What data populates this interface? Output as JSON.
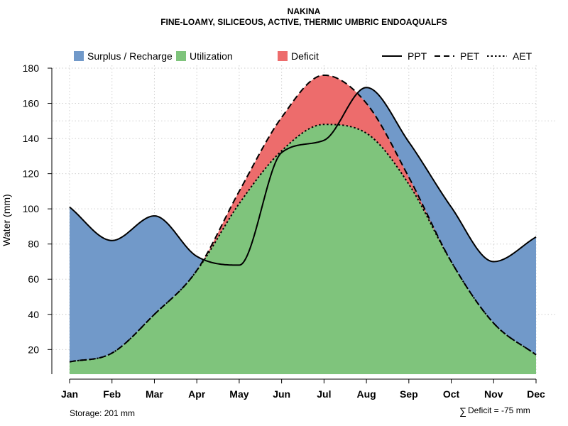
{
  "chart_data": {
    "type": "area",
    "title": "NAKINA",
    "subtitle": "FINE-LOAMY, SILICEOUS, ACTIVE, THERMIC UMBRIC ENDOAQUALFS",
    "xlabel": "",
    "ylabel": "Water (mm)",
    "ylim": [
      6,
      180
    ],
    "yticks": [
      20,
      40,
      60,
      80,
      100,
      120,
      140,
      160,
      180
    ],
    "categories": [
      "Jan",
      "Feb",
      "Mar",
      "Apr",
      "May",
      "Jun",
      "Jul",
      "Aug",
      "Sep",
      "Oct",
      "Nov",
      "Dec"
    ],
    "grid": true,
    "reference_lines_y": [
      40,
      150
    ],
    "series": [
      {
        "name": "PPT",
        "line": "solid",
        "values": [
          101,
          82,
          96,
          73,
          68,
          132,
          139,
          169,
          138,
          101,
          70,
          84
        ]
      },
      {
        "name": "PET",
        "line": "dashed",
        "values": [
          13,
          18,
          40,
          65,
          110,
          152,
          176,
          160,
          118,
          70,
          35,
          17
        ]
      },
      {
        "name": "AET",
        "line": "dotted",
        "values": [
          13,
          18,
          40,
          65,
          103,
          133,
          148,
          143,
          114,
          70,
          35,
          17
        ]
      }
    ],
    "fills": [
      {
        "name": "Surplus / Recharge",
        "color": "#7199C9",
        "between": [
          "PPT",
          "PET"
        ],
        "where": "PPT > PET"
      },
      {
        "name": "Utilization",
        "color": "#7FC47C",
        "between": [
          "baseline",
          "AET"
        ]
      },
      {
        "name": "Deficit",
        "color": "#ED6C6C",
        "between": [
          "AET",
          "PET"
        ],
        "where": "PET > AET"
      }
    ],
    "legend_fills": [
      "Surplus / Recharge",
      "Utilization",
      "Deficit"
    ],
    "legend_lines": [
      "PPT",
      "PET",
      "AET"
    ],
    "legend_position": "top",
    "annotations": {
      "storage": "Storage: 201 mm",
      "deficit": "Deficit = -75 mm",
      "deficit_symbol": "∑"
    }
  }
}
